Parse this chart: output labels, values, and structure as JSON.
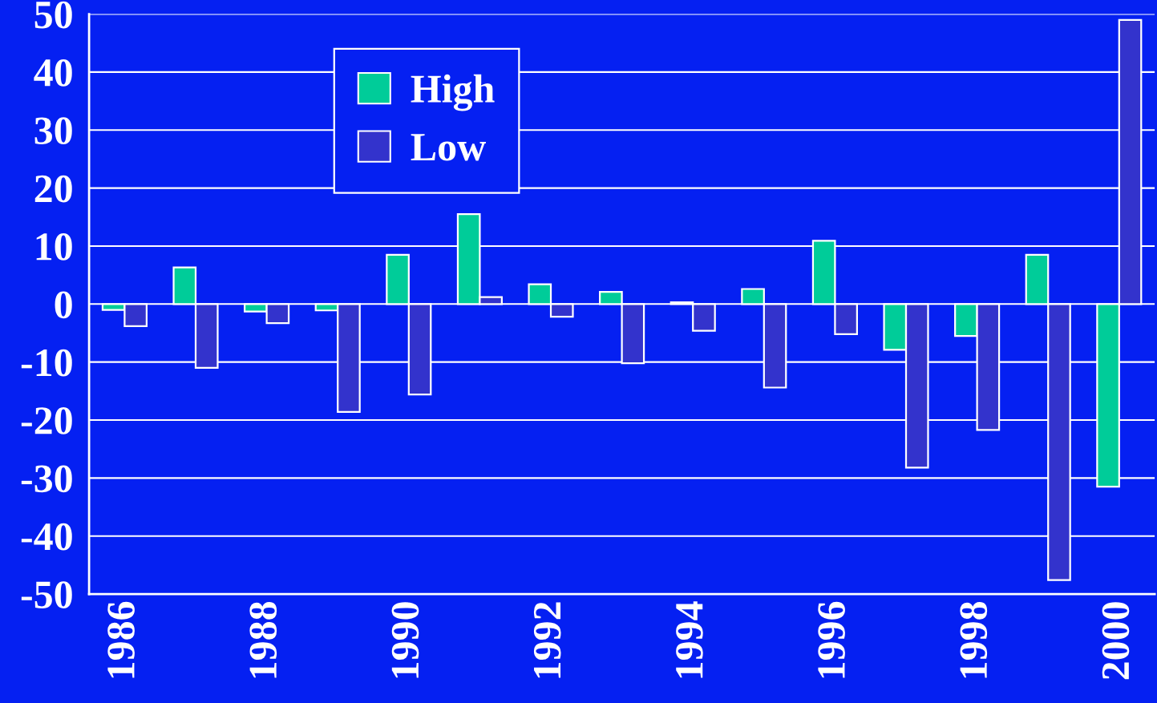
{
  "chart_data": {
    "type": "bar",
    "categories": [
      "1986",
      null,
      "1988",
      null,
      "1990",
      null,
      "1992",
      null,
      "1994",
      null,
      "1996",
      null,
      "1998",
      null,
      "2000"
    ],
    "series": [
      {
        "name": "High",
        "color": "#00cc99",
        "values": [
          -1.0,
          6.3,
          -1.3,
          -1.1,
          8.5,
          15.5,
          3.4,
          2.1,
          0.3,
          2.6,
          10.9,
          -7.9,
          -5.5,
          8.5,
          -31.5
        ]
      },
      {
        "name": "Low",
        "color": "#3333cc",
        "values": [
          -3.8,
          -11.0,
          -3.3,
          -18.6,
          -15.6,
          1.2,
          -2.2,
          -10.2,
          -4.6,
          -14.4,
          -5.2,
          -28.2,
          -21.7,
          -47.6,
          49.0
        ]
      }
    ],
    "ylim": [
      -50,
      50
    ],
    "yticks": [
      -50,
      -40,
      -30,
      -20,
      -10,
      0,
      10,
      20,
      30,
      40,
      50
    ],
    "grid": "y",
    "legend": "top left"
  }
}
